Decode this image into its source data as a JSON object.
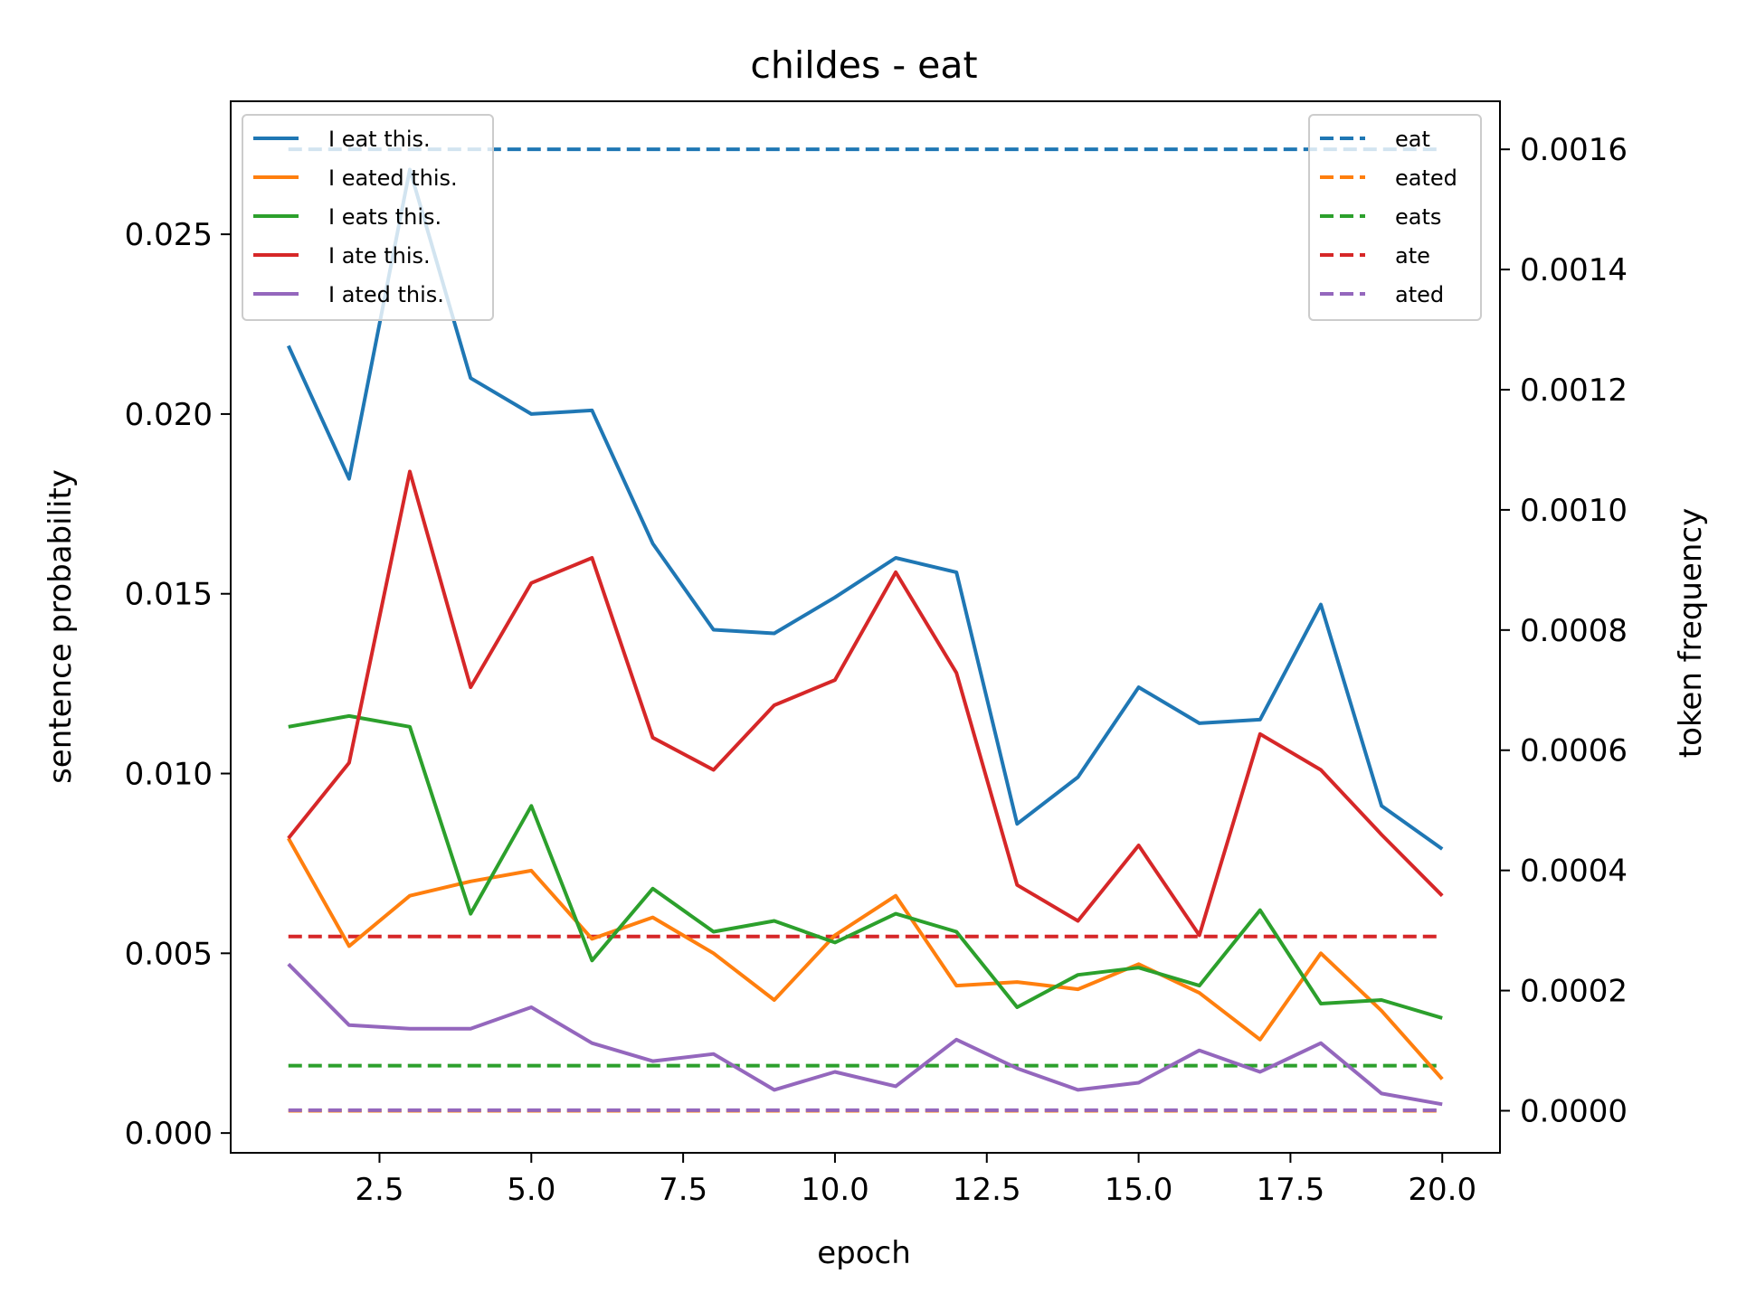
{
  "chart_data": {
    "type": "line",
    "title": "childes - eat",
    "xlabel": "epoch",
    "ylabel": "sentence probability",
    "y2label": "token frequency",
    "xlim": [
      0.05,
      20.95
    ],
    "ylim": [
      -0.00055,
      0.0287
    ],
    "y2lim": [
      -7e-05,
      0.00168
    ],
    "x_ticks": [
      2.5,
      5.0,
      7.5,
      10.0,
      12.5,
      15.0,
      17.5,
      20.0
    ],
    "x_tick_labels": [
      "2.5",
      "5.0",
      "7.5",
      "10.0",
      "12.5",
      "15.0",
      "17.5",
      "20.0"
    ],
    "y_ticks": [
      0.0,
      0.005,
      0.01,
      0.015,
      0.02,
      0.025
    ],
    "y_tick_labels": [
      "0.000",
      "0.005",
      "0.010",
      "0.015",
      "0.020",
      "0.025"
    ],
    "y2_ticks": [
      0.0,
      0.0002,
      0.0004,
      0.0006,
      0.0008,
      0.001,
      0.0012,
      0.0014,
      0.0016
    ],
    "y2_tick_labels": [
      "0.0000",
      "0.0002",
      "0.0004",
      "0.0006",
      "0.0008",
      "0.0010",
      "0.0012",
      "0.0014",
      "0.0016"
    ],
    "grid": false,
    "x": [
      1,
      2,
      3,
      4,
      5,
      6,
      7,
      8,
      9,
      10,
      11,
      12,
      13,
      14,
      15,
      16,
      17,
      18,
      19,
      20
    ],
    "series": [
      {
        "name": "I eat this.",
        "color": "#1f77b4",
        "axis": "left",
        "style": "solid",
        "values": [
          0.0219,
          0.0182,
          0.0268,
          0.021,
          0.02,
          0.0201,
          0.0164,
          0.014,
          0.0139,
          0.0149,
          0.016,
          0.0156,
          0.0086,
          0.0099,
          0.0124,
          0.0114,
          0.0115,
          0.0147,
          0.0091,
          0.0079
        ]
      },
      {
        "name": "I eated this.",
        "color": "#ff7f0e",
        "axis": "left",
        "style": "solid",
        "values": [
          0.0082,
          0.0052,
          0.0066,
          0.007,
          0.0073,
          0.0054,
          0.006,
          0.005,
          0.0037,
          0.0055,
          0.0066,
          0.0041,
          0.0042,
          0.004,
          0.0047,
          0.0039,
          0.0026,
          0.005,
          0.0034,
          0.0015
        ]
      },
      {
        "name": "I eats this.",
        "color": "#2ca02c",
        "axis": "left",
        "style": "solid",
        "values": [
          0.0113,
          0.0116,
          0.0113,
          0.0061,
          0.0091,
          0.0048,
          0.0068,
          0.0056,
          0.0059,
          0.0053,
          0.0061,
          0.0056,
          0.0035,
          0.0044,
          0.0046,
          0.0041,
          0.0062,
          0.0036,
          0.0037,
          0.0032
        ]
      },
      {
        "name": "I ate this.",
        "color": "#d62728",
        "axis": "left",
        "style": "solid",
        "values": [
          0.0082,
          0.0103,
          0.0184,
          0.0124,
          0.0153,
          0.016,
          0.011,
          0.0101,
          0.0119,
          0.0126,
          0.0156,
          0.0128,
          0.0069,
          0.0059,
          0.008,
          0.0055,
          0.0111,
          0.0101,
          0.0083,
          0.0066
        ]
      },
      {
        "name": "I ated this.",
        "color": "#9467bd",
        "axis": "left",
        "style": "solid",
        "values": [
          0.0047,
          0.003,
          0.0029,
          0.0029,
          0.0035,
          0.0025,
          0.002,
          0.0022,
          0.0012,
          0.0017,
          0.0013,
          0.0026,
          0.0018,
          0.0012,
          0.0014,
          0.0023,
          0.0017,
          0.0025,
          0.0011,
          0.0008
        ]
      },
      {
        "name": "eat",
        "color": "#1f77b4",
        "axis": "right",
        "style": "dashed",
        "value": 0.0016
      },
      {
        "name": "eated",
        "color": "#ff7f0e",
        "axis": "right",
        "style": "dashed",
        "value": 0.0
      },
      {
        "name": "eats",
        "color": "#2ca02c",
        "axis": "right",
        "style": "dashed",
        "value": 7.5e-05
      },
      {
        "name": "ate",
        "color": "#d62728",
        "axis": "right",
        "style": "dashed",
        "value": 0.00029
      },
      {
        "name": "ated",
        "color": "#9467bd",
        "axis": "right",
        "style": "dashed",
        "value": 1e-06
      }
    ],
    "legend_left": {
      "placement": "upper-left",
      "entries": [
        "I eat this.",
        "I eated this.",
        "I eats this.",
        "I ate this.",
        "I ated this."
      ]
    },
    "legend_right": {
      "placement": "upper-right",
      "entries": [
        "eat",
        "eated",
        "eats",
        "ate",
        "ated"
      ]
    }
  }
}
